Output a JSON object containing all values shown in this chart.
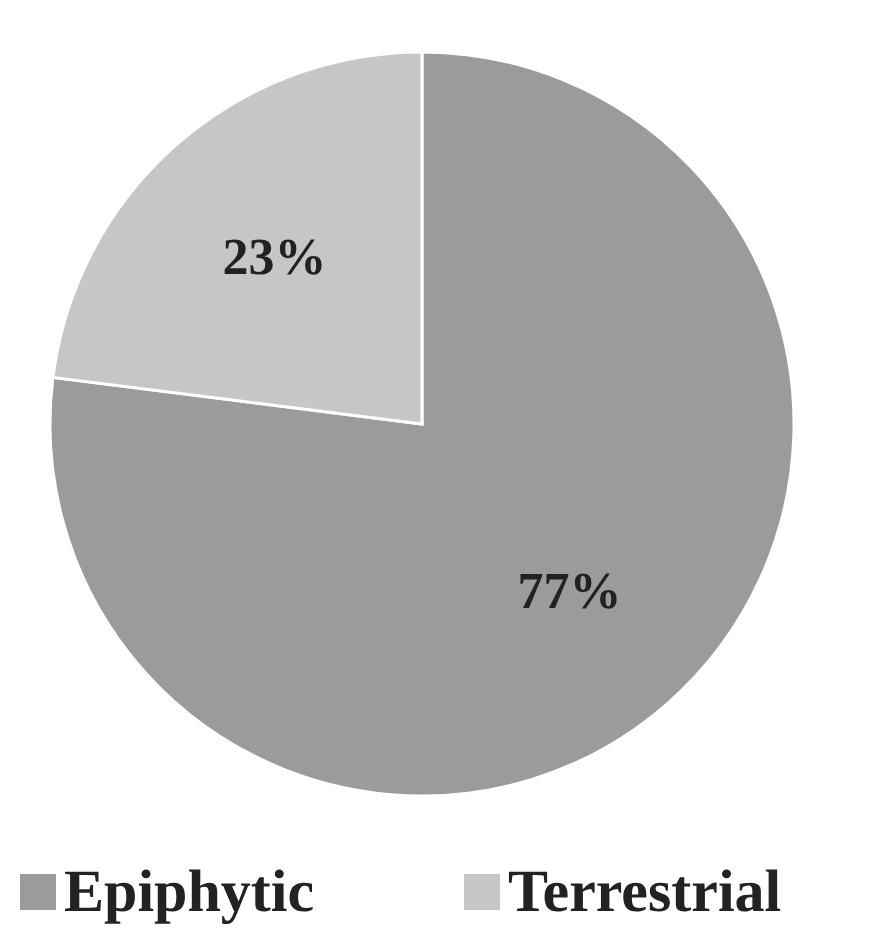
{
  "chart_data": {
    "type": "pie",
    "categories": [
      "Epiphytic",
      "Terrestrial"
    ],
    "values": [
      77,
      23
    ],
    "colors": [
      "#9b9b9b",
      "#c6c6c6"
    ],
    "value_labels": [
      "77%",
      "23%"
    ],
    "legend": "bottom"
  }
}
